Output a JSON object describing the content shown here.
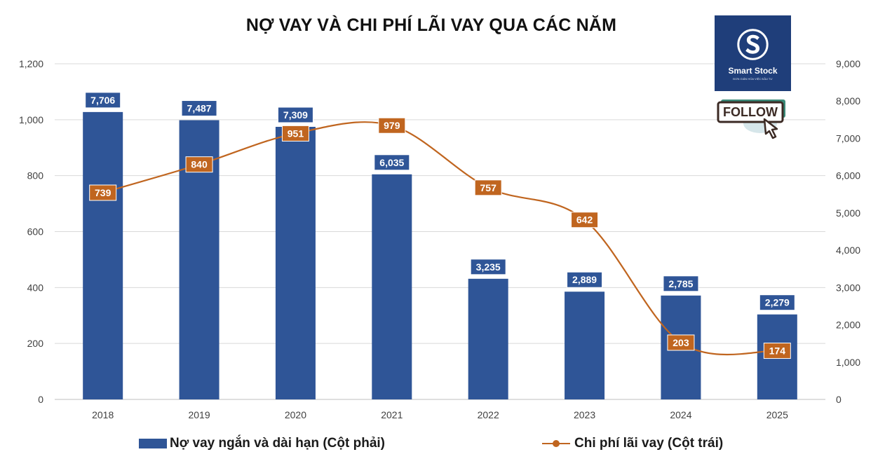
{
  "chart_data": {
    "type": "bar",
    "title": "NỢ VAY VÀ CHI PHÍ LÃI VAY QUA CÁC NĂM",
    "categories": [
      "2018",
      "2019",
      "2020",
      "2021",
      "2022",
      "2023",
      "2024",
      "2025"
    ],
    "series": [
      {
        "name": "Nợ vay ngắn và dài hạn (Cột phải)",
        "type": "bar",
        "axis": "right",
        "color": "#2f5597",
        "values": [
          7706,
          7487,
          7309,
          6035,
          3235,
          2889,
          2785,
          2279
        ],
        "labels": [
          "7,706",
          "7,487",
          "7,309",
          "6,035",
          "3,235",
          "2,889",
          "2,785",
          "2,279"
        ]
      },
      {
        "name": "Chi phí lãi vay (Cột trái)",
        "type": "line",
        "axis": "left",
        "smooth": true,
        "color": "#c0651f",
        "values": [
          739,
          840,
          951,
          979,
          757,
          642,
          203,
          174
        ],
        "labels": [
          "739",
          "840",
          "951",
          "979",
          "757",
          "642",
          "203",
          "174"
        ]
      }
    ],
    "left_axis": {
      "min": 0,
      "max": 1200,
      "ticks": [
        "0",
        "200",
        "400",
        "600",
        "800",
        "1,000",
        "1,200"
      ]
    },
    "right_axis": {
      "min": 0,
      "max": 9000,
      "ticks": [
        "0",
        "1,000",
        "2,000",
        "3,000",
        "4,000",
        "5,000",
        "6,000",
        "7,000",
        "8,000",
        "9,000"
      ]
    },
    "grid": true,
    "legend": "bottom"
  },
  "logo": {
    "name": "Smart Stock",
    "tagline": "ĐƠN GIẢN HÓA VIỆC ĐẦU TƯ"
  },
  "follow_badge": {
    "label": "FOLLOW"
  }
}
